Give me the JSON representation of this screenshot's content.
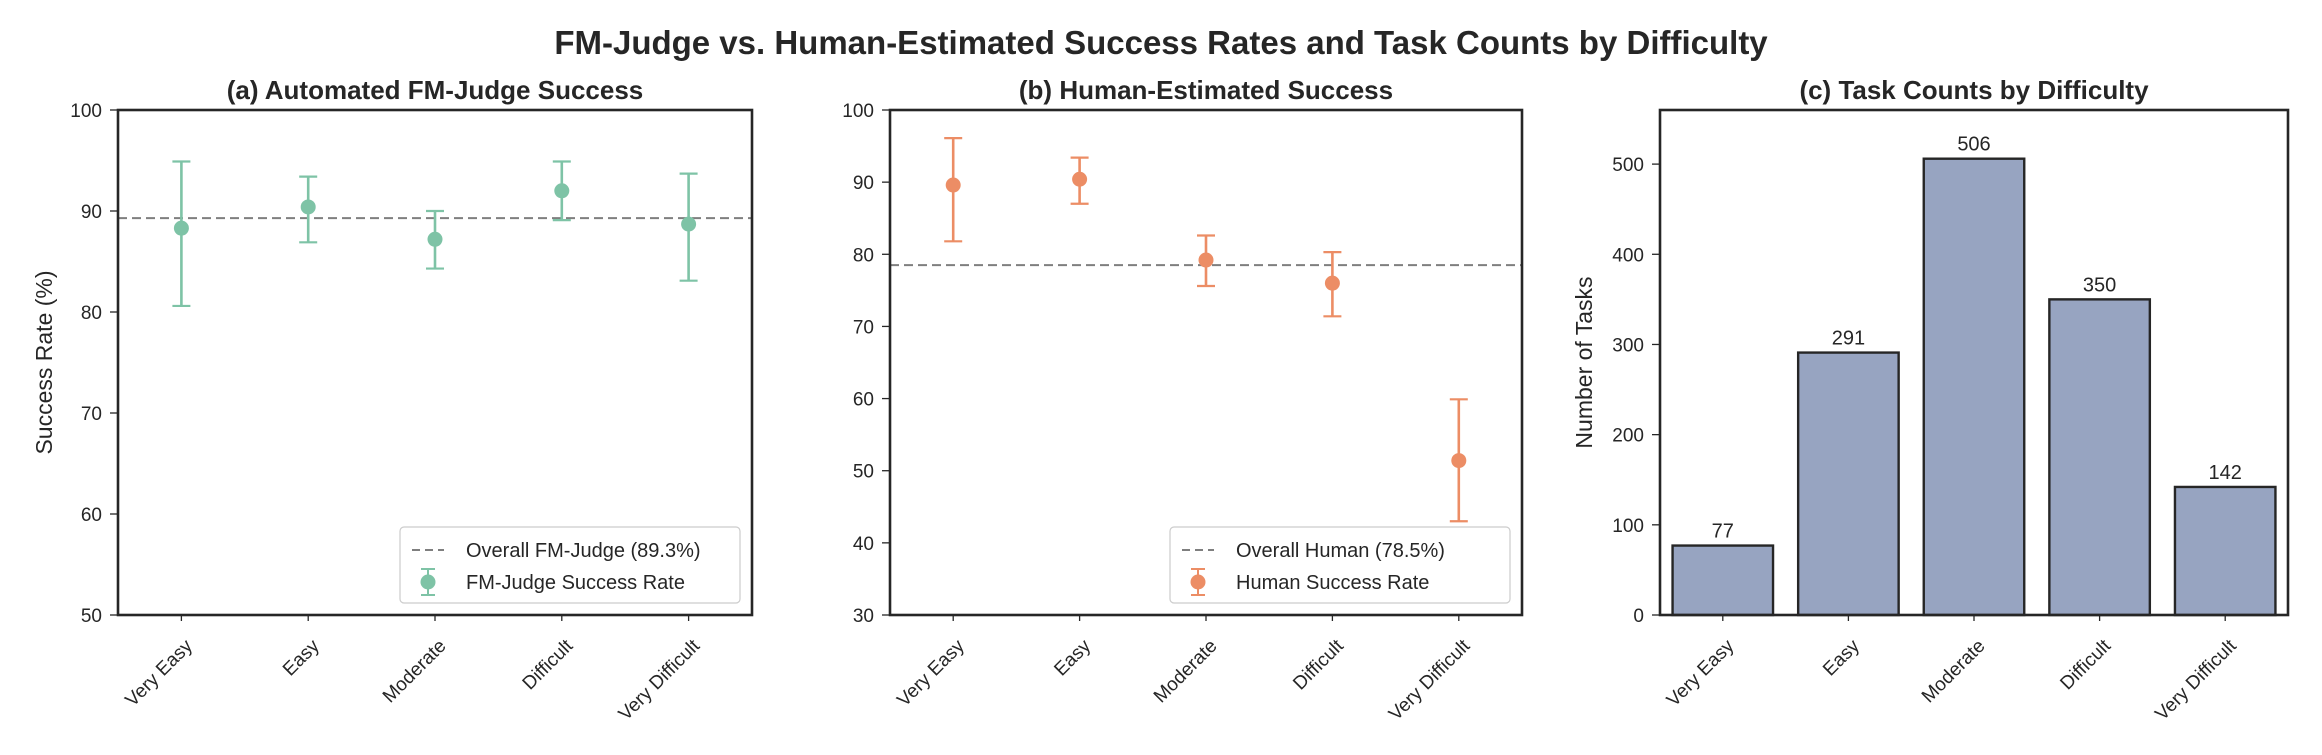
{
  "figure": {
    "title": "FM-Judge vs. Human-Estimated Success Rates and Task Counts by Difficulty"
  },
  "colors": {
    "fm_judge": "#7ec3a6",
    "human": "#ec8d65",
    "bars": "#97a4c1",
    "reference_line": "#7f7f7f"
  },
  "chart_data": [
    {
      "type": "scatter",
      "title": "(a) Automated FM-Judge Success",
      "xlabel": "",
      "ylabel": "Success Rate (%)",
      "categories": [
        "Very Easy",
        "Easy",
        "Moderate",
        "Difficult",
        "Very Difficult"
      ],
      "ylim": [
        50,
        100
      ],
      "yticks": [
        50,
        60,
        70,
        80,
        90,
        100
      ],
      "series": [
        {
          "name": "FM-Judge Success Rate",
          "values": [
            88.3,
            90.4,
            87.2,
            92.0,
            88.7
          ],
          "error_low": [
            80.6,
            86.9,
            84.3,
            89.1,
            83.1
          ],
          "error_high": [
            94.9,
            93.4,
            90.0,
            94.9,
            93.7
          ]
        }
      ],
      "reference_line": {
        "label": "Overall FM-Judge (89.3%)",
        "value": 89.3
      },
      "legend": "lower-right",
      "grid": false
    },
    {
      "type": "scatter",
      "title": "(b) Human-Estimated Success",
      "xlabel": "",
      "ylabel": "",
      "categories": [
        "Very Easy",
        "Easy",
        "Moderate",
        "Difficult",
        "Very Difficult"
      ],
      "ylim": [
        30,
        100
      ],
      "yticks": [
        30,
        40,
        50,
        60,
        70,
        80,
        90,
        100
      ],
      "series": [
        {
          "name": "Human Success Rate",
          "values": [
            89.6,
            90.4,
            79.2,
            76.0,
            51.4
          ],
          "error_low": [
            81.8,
            87.0,
            75.6,
            71.4,
            43.0
          ],
          "error_high": [
            96.1,
            93.4,
            82.6,
            80.3,
            59.9
          ]
        }
      ],
      "reference_line": {
        "label": "Overall Human (78.5%)",
        "value": 78.5
      },
      "legend": "lower-right",
      "grid": false
    },
    {
      "type": "bar",
      "title": "(c) Task Counts by Difficulty",
      "xlabel": "",
      "ylabel": "Number of Tasks",
      "categories": [
        "Very Easy",
        "Easy",
        "Moderate",
        "Difficult",
        "Very Difficult"
      ],
      "values": [
        77,
        291,
        506,
        350,
        142
      ],
      "ylim": [
        0,
        560
      ],
      "yticks": [
        0,
        100,
        200,
        300,
        400,
        500
      ],
      "grid": false
    }
  ]
}
